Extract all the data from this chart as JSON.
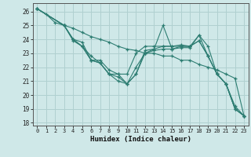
{
  "xlabel": "Humidex (Indice chaleur)",
  "bg_color": "#cfe8e8",
  "line_color": "#2d7d72",
  "grid_color": "#b0d0d0",
  "xlim": [
    -0.5,
    23.5
  ],
  "ylim": [
    17.8,
    26.6
  ],
  "yticks": [
    18,
    19,
    20,
    21,
    22,
    23,
    24,
    25,
    26
  ],
  "xticks": [
    0,
    1,
    2,
    3,
    4,
    5,
    6,
    7,
    8,
    9,
    10,
    11,
    12,
    13,
    14,
    15,
    16,
    17,
    18,
    19,
    20,
    21,
    22,
    23
  ],
  "series": [
    {
      "x": [
        0,
        1,
        2,
        3,
        4,
        5,
        6,
        7,
        8,
        9,
        10,
        11,
        12,
        13,
        14,
        15,
        16,
        17,
        18,
        19,
        20,
        21,
        22,
        23
      ],
      "y": [
        26.2,
        25.8,
        25.2,
        25.0,
        24.8,
        24.5,
        24.2,
        24.0,
        23.8,
        23.5,
        23.3,
        23.2,
        23.0,
        23.0,
        22.8,
        22.8,
        22.5,
        22.5,
        22.2,
        22.0,
        21.8,
        21.5,
        21.2,
        18.5
      ]
    },
    {
      "x": [
        0,
        3,
        4,
        5,
        6,
        7,
        8,
        9,
        10,
        11,
        12,
        13,
        14,
        15,
        16,
        17,
        18,
        19,
        20,
        21,
        22,
        23
      ],
      "y": [
        26.2,
        25.0,
        24.0,
        23.5,
        22.8,
        22.3,
        21.5,
        21.0,
        20.8,
        21.5,
        23.0,
        23.2,
        23.3,
        23.3,
        23.5,
        23.5,
        24.3,
        23.5,
        21.5,
        20.8,
        19.0,
        18.5
      ]
    },
    {
      "x": [
        0,
        3,
        4,
        5,
        6,
        7,
        8,
        9,
        10,
        11,
        12,
        13,
        14,
        15,
        16,
        17,
        18,
        19,
        20,
        21,
        22,
        23
      ],
      "y": [
        26.2,
        25.0,
        24.0,
        23.8,
        22.5,
        22.5,
        21.8,
        21.5,
        20.8,
        22.0,
        23.0,
        23.3,
        25.0,
        23.3,
        23.4,
        23.4,
        24.3,
        22.8,
        21.5,
        20.8,
        19.0,
        18.5
      ]
    },
    {
      "x": [
        0,
        3,
        4,
        5,
        6,
        7,
        8,
        9,
        10,
        11,
        12,
        13,
        14,
        15,
        16,
        17,
        18,
        19,
        20,
        21,
        22,
        23
      ],
      "y": [
        26.2,
        25.0,
        23.9,
        23.5,
        22.5,
        22.3,
        21.5,
        21.3,
        20.8,
        21.5,
        23.2,
        23.3,
        23.5,
        23.5,
        23.6,
        23.5,
        23.9,
        22.8,
        21.5,
        20.8,
        19.2,
        18.5
      ]
    },
    {
      "x": [
        0,
        3,
        4,
        5,
        6,
        7,
        8,
        9,
        10,
        11,
        12,
        13,
        14,
        15,
        16,
        17,
        18,
        19,
        20,
        21,
        22,
        23
      ],
      "y": [
        26.2,
        25.0,
        24.0,
        23.5,
        22.5,
        22.3,
        21.5,
        21.5,
        21.5,
        23.0,
        23.5,
        23.5,
        23.5,
        23.5,
        23.5,
        23.5,
        23.9,
        22.8,
        21.5,
        20.8,
        19.0,
        18.5
      ]
    }
  ]
}
